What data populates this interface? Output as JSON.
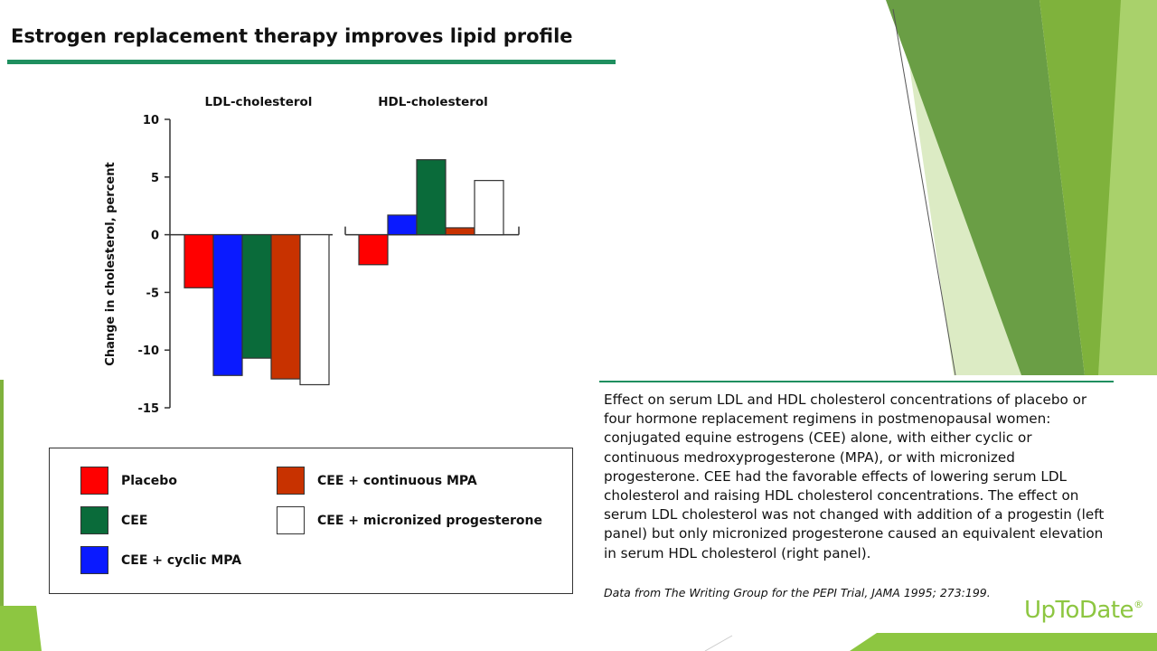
{
  "page": {
    "title": "Estrogen replacement therapy improves lipid profile",
    "caption": "Effect on serum LDL and HDL cholesterol concentrations of placebo or four hormone replacement regimens in postmenopausal women: conjugated equine estrogens (CEE) alone, with either cyclic or continuous medroxyprogesterone (MPA), or with micronized progesterone. CEE had the favorable effects of lowering serum LDL cholesterol and raising HDL cholesterol concentrations. The effect on serum LDL cholesterol was not changed with addition of a progestin (left panel) but only micronized progesterone caused an equivalent elevation in serum HDL cholesterol (right panel).",
    "source": "Data from The Writing Group for the PEPI Trial, JAMA 1995; 273:199.",
    "brand": "UpToDate",
    "brand_mark": "®"
  },
  "theme": {
    "accent": "#1f8f5f",
    "brand": "#8dc641",
    "deco_dark": "#6a9e45",
    "deco_mid": "#7fb23c",
    "deco_light": "#a9d16b",
    "deco_pale": "#dcebc4"
  },
  "chart_data": {
    "type": "bar",
    "ylabel": "Change in cholesterol, percent",
    "ylim": [
      -15,
      10
    ],
    "yticks": [
      10,
      5,
      0,
      -5,
      -10,
      -15
    ],
    "ytick_labels": [
      "10",
      "5",
      "0",
      "-5",
      "-10",
      "-15"
    ],
    "panels": [
      {
        "name": "LDL-cholesterol",
        "values": [
          -4.6,
          -10.7,
          -12.2,
          -12.5,
          -13.0
        ]
      },
      {
        "name": "HDL-cholesterol",
        "values": [
          -2.6,
          6.5,
          1.7,
          0.6,
          4.7
        ]
      }
    ],
    "series": [
      {
        "name": "Placebo",
        "color": "#ff0000"
      },
      {
        "name": "CEE",
        "color": "#0a6b3a"
      },
      {
        "name": "CEE + cyclic MPA",
        "color": "#0a1aff"
      },
      {
        "name": "CEE + continuous MPA",
        "color": "#c83200"
      },
      {
        "name": "CEE + micronized progesterone",
        "color": "#ffffff"
      }
    ],
    "bar_order": [
      0,
      2,
      1,
      3,
      4
    ],
    "legend_position": "bottom"
  }
}
